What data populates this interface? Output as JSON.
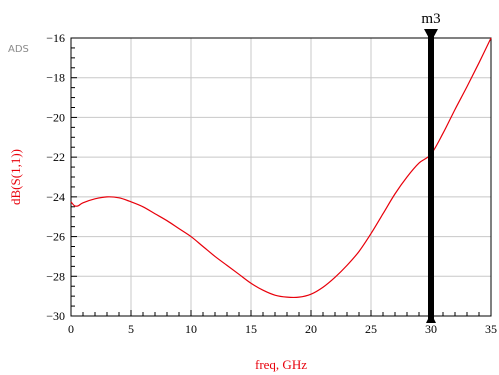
{
  "brand_label": "ADS",
  "chart_data": {
    "type": "line",
    "xlabel": "freq, GHz",
    "ylabel": "dB(S(1,1))",
    "xlim": [
      0,
      35
    ],
    "ylim": [
      -30,
      -16
    ],
    "x_ticks": [
      0,
      5,
      10,
      15,
      20,
      25,
      30,
      35
    ],
    "y_ticks": [
      -30,
      -28,
      -26,
      -24,
      -22,
      -20,
      -18,
      -16
    ],
    "grid": true,
    "series": [
      {
        "color": "#e8000b",
        "x": [
          0,
          0.3,
          0.6,
          1,
          2,
          3,
          4,
          5,
          6,
          7,
          8,
          9,
          10,
          11,
          12,
          13,
          14,
          15,
          16,
          17,
          18,
          19,
          20,
          21,
          22,
          23,
          24,
          25,
          26,
          27,
          28,
          29,
          30,
          31,
          32,
          33,
          34,
          35
        ],
        "y": [
          -24.25,
          -24.45,
          -24.45,
          -24.3,
          -24.1,
          -24.0,
          -24.05,
          -24.25,
          -24.5,
          -24.85,
          -25.2,
          -25.6,
          -26.0,
          -26.5,
          -27.0,
          -27.45,
          -27.9,
          -28.35,
          -28.7,
          -28.95,
          -29.05,
          -29.05,
          -28.9,
          -28.55,
          -28.05,
          -27.45,
          -26.75,
          -25.85,
          -24.85,
          -23.85,
          -23.0,
          -22.3,
          -21.85,
          -20.8,
          -19.6,
          -18.45,
          -17.25,
          -16.0
        ]
      }
    ],
    "markers": [
      {
        "name": "m3",
        "x": 30
      }
    ]
  },
  "colors": {
    "curve": "#e8000b",
    "grid": "#c8c8c8",
    "axis_label": "#e8000b",
    "marker": "#000000"
  }
}
